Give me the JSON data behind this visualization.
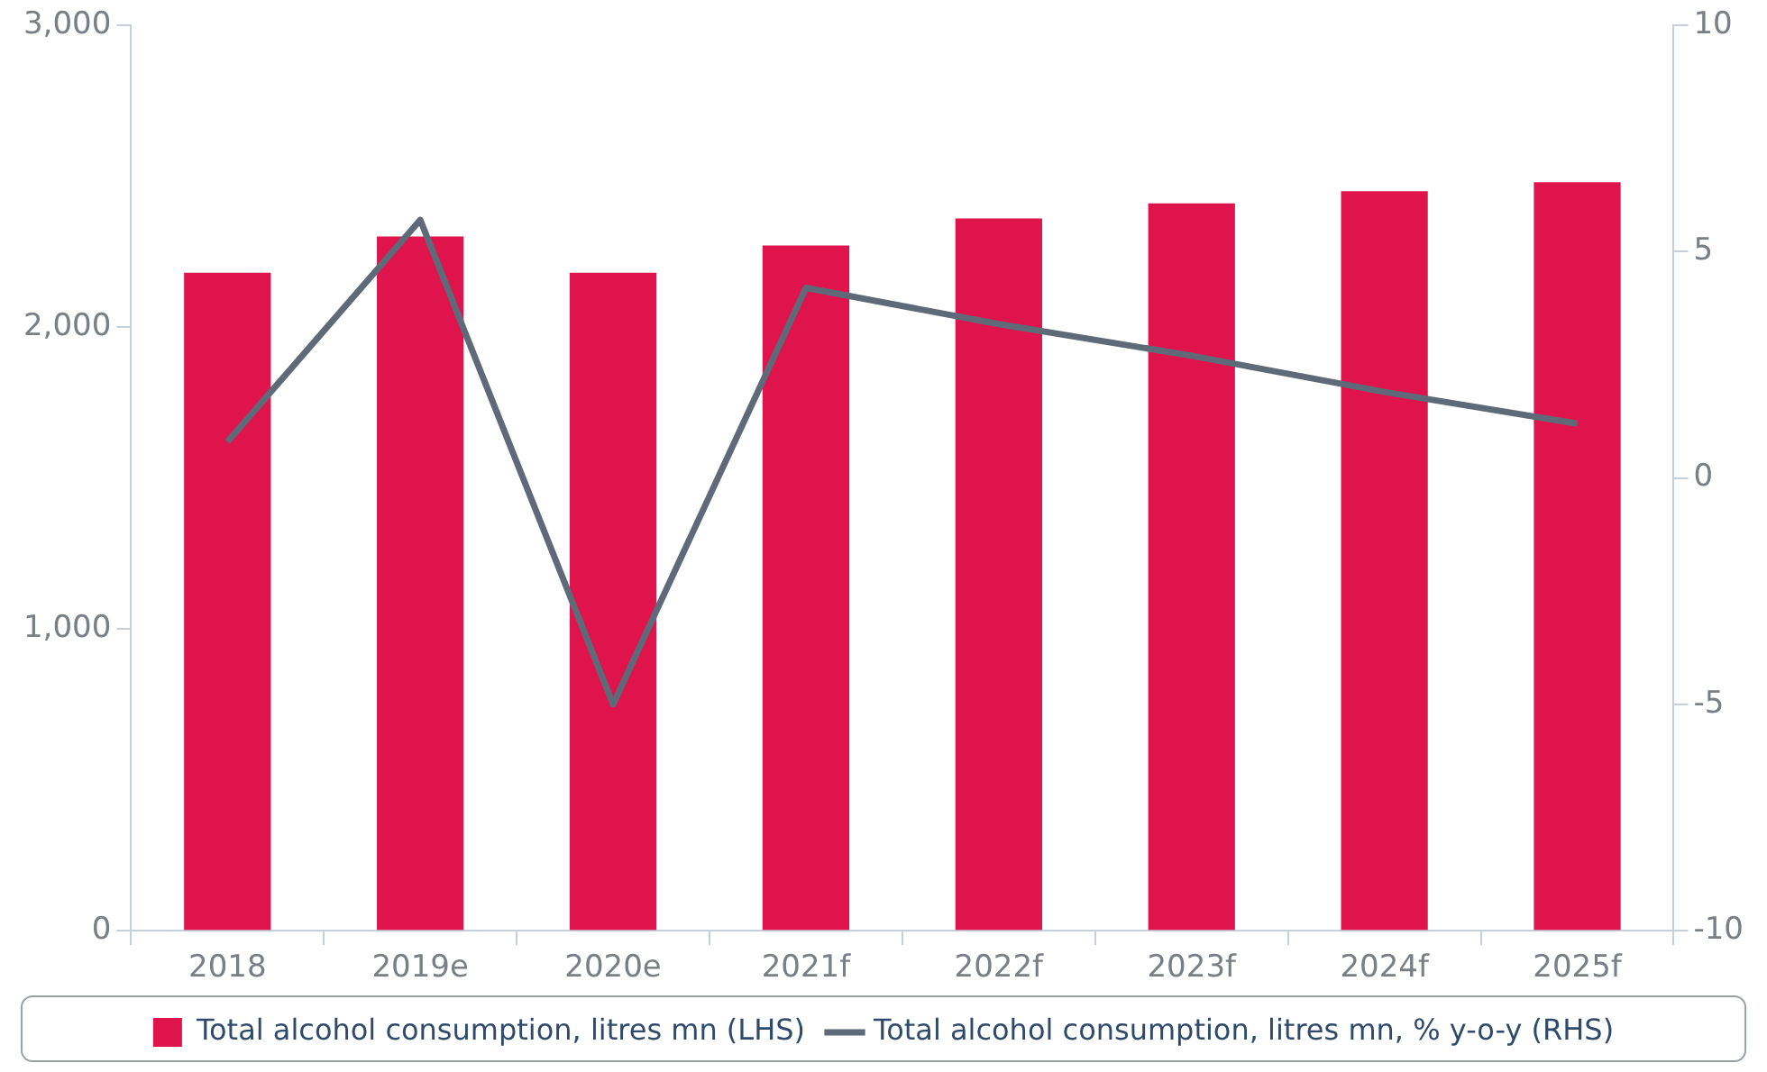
{
  "chart_data": {
    "type": "bar",
    "categories": [
      "2018",
      "2019e",
      "2020e",
      "2021f",
      "2022f",
      "2023f",
      "2024f",
      "2025f"
    ],
    "series": [
      {
        "name": "Total alcohol consumption, litres mn (LHS)",
        "color": "#e0144c",
        "values": [
          2180,
          2300,
          2180,
          2270,
          2360,
          2410,
          2450,
          2480
        ]
      },
      {
        "name": "Total alcohol consumption, litres mn, % y-o-y (RHS)",
        "type": "line",
        "axis": "y2",
        "color": "#5f6a78",
        "values": [
          0.8,
          5.7,
          -5.0,
          4.2,
          3.4,
          2.7,
          1.9,
          1.2
        ]
      }
    ],
    "ylim": [
      0,
      3000
    ],
    "yticks": [
      {
        "value": 0,
        "label": "0"
      },
      {
        "value": 1000,
        "label": "1,000"
      },
      {
        "value": 2000,
        "label": "2,000"
      },
      {
        "value": 3000,
        "label": "3,000"
      }
    ],
    "y2lim": [
      -10,
      10
    ],
    "y2ticks": [
      -10,
      -5,
      0,
      5,
      10
    ],
    "grid": false,
    "legend": "bottom",
    "marker": "none",
    "line_style": "solid"
  }
}
